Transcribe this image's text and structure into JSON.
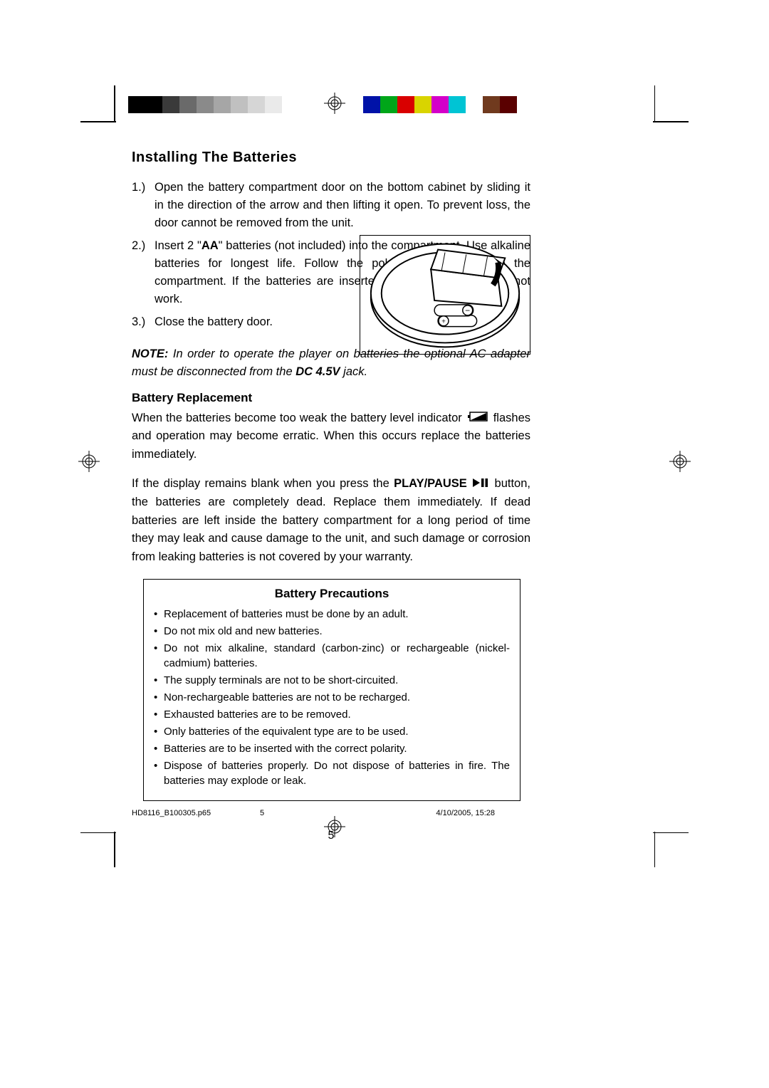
{
  "colorbar_left": [
    "#000000",
    "#000000",
    "#3a3a3a",
    "#6a6a6a",
    "#8a8a8a",
    "#a6a6a6",
    "#c0c0c0",
    "#d6d6d6",
    "#eaeaea",
    "#ffffff"
  ],
  "colorbar_right": [
    "#0012a8",
    "#00a619",
    "#d90000",
    "#d9d400",
    "#d400c9",
    "#00c4d4",
    "#ffffff",
    "#703a1e",
    "#5a0000"
  ],
  "heading1": "Installing The Batteries",
  "steps": [
    {
      "num": "1.)",
      "text": "Open the battery compartment door on the bottom cabinet by sliding it in the direction of the arrow and then lifting it open. To prevent loss, the door cannot be removed from the unit.",
      "narrow": false
    },
    {
      "num": "2.)",
      "text_pre": "Insert 2 \"",
      "bold": "AA",
      "text_post": "\" batteries (not included) into the compartment. Use alkaline batteries for longest life. Follow the polarity markings inside the compartment. If the batteries are inserted incorrectly the unit will not work.",
      "narrow": true
    },
    {
      "num": "3.)",
      "text": "Close the battery door.",
      "narrow": false
    }
  ],
  "note_label": "NOTE:",
  "note_text_1": " In order to operate the player on batteries the optional AC adapter must be disconnected from the ",
  "note_bold": "DC 4.5V",
  "note_text_2": " jack.",
  "heading2": "Battery Replacement",
  "para1_pre": "When the batteries become too weak the battery level indicator ",
  "para1_post": " flashes and operation may become erratic. When this occurs replace the batteries immediately.",
  "para2_pre": "If the display remains blank when you press the ",
  "para2_bold": "PLAY/PAUSE",
  "para2_post": " button, the batteries are completely dead. Replace them immediately. If dead batteries are left inside the battery compartment for a long period of time they may leak and cause damage to the unit, and such damage or corrosion from leaking batteries is not covered by your warranty.",
  "box_title": "Battery Precautions",
  "precautions": [
    "Replacement of batteries must be done by an adult.",
    "Do not mix old and new batteries.",
    "Do not mix alkaline, standard (carbon-zinc) or rechargeable (nickel-cadmium) batteries.",
    "The supply terminals are not to be short-circuited.",
    "Non-rechargeable batteries are not to be recharged.",
    "Exhausted batteries are to be removed.",
    "Only batteries of the equivalent type are to be used.",
    "Batteries are to be inserted with the correct polarity.",
    "Dispose of batteries properly. Do not dispose of batteries in fire. The batteries may explode or leak."
  ],
  "page_number": "5",
  "footer_file": "HD8116_B100305.p65",
  "footer_page": "5",
  "footer_date": "4/10/2005, 15:28"
}
